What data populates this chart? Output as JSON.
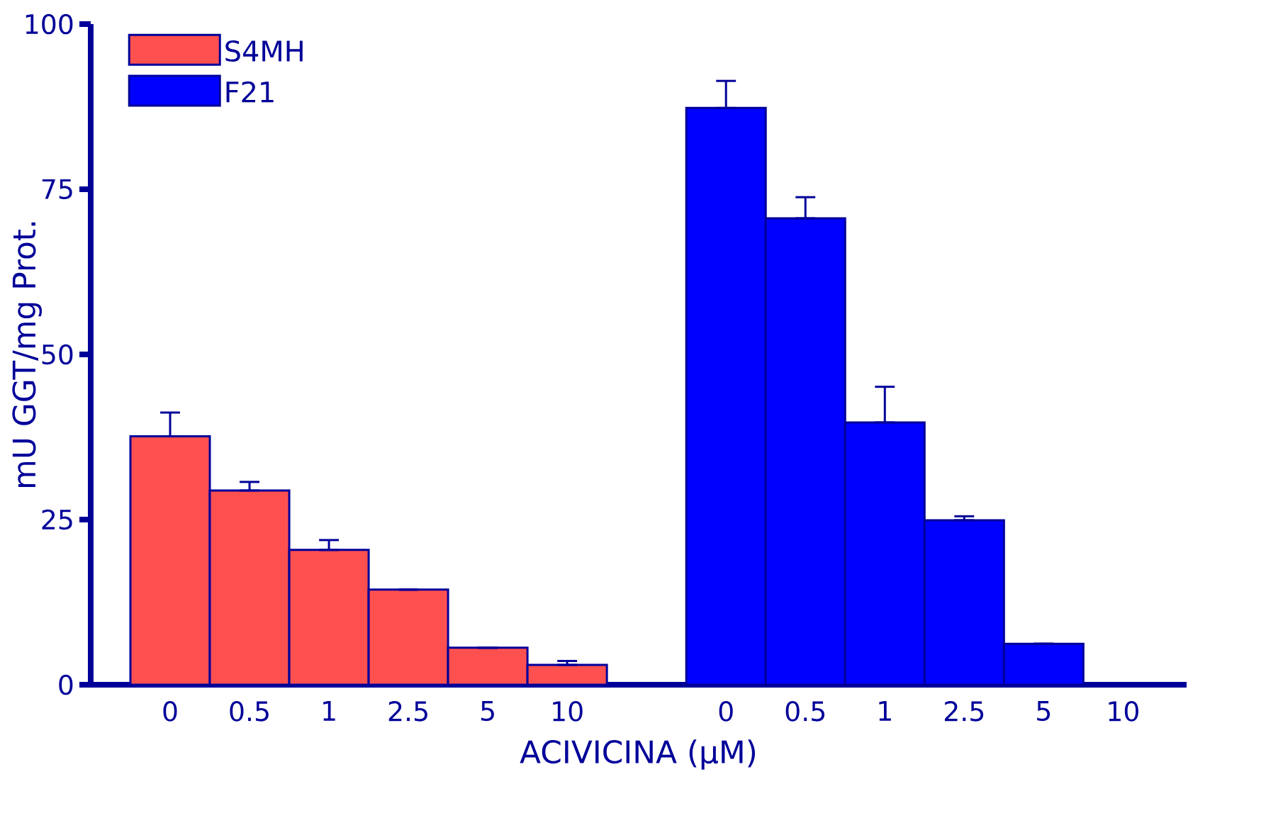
{
  "chart_data": {
    "type": "bar",
    "xlabel": "ACIVICINA (μM)",
    "ylabel": "mU GGT/mg Prot.",
    "categories": [
      "0",
      "0.5",
      "1",
      "2.5",
      "5",
      "10",
      null,
      "0",
      "0.5",
      "1",
      "2.5",
      "5",
      "10"
    ],
    "series": [
      {
        "name": "S4MH",
        "color": "#ff5050",
        "values": [
          37.6,
          29.4,
          20.4,
          14.4,
          5.6,
          3.0,
          null,
          null,
          null,
          null,
          null,
          null,
          null
        ],
        "errors": [
          [
            37.6,
            41.2
          ],
          [
            29.4,
            30.7
          ],
          [
            20.4,
            21.9
          ],
          null,
          null,
          [
            3.0,
            3.6
          ],
          null,
          null,
          null,
          null,
          null,
          null,
          null
        ]
      },
      {
        "name": "F21",
        "color": "#0000ff",
        "values": [
          null,
          null,
          null,
          null,
          null,
          null,
          null,
          87.3,
          70.6,
          39.7,
          24.9,
          6.2,
          null
        ],
        "errors": [
          null,
          null,
          null,
          null,
          null,
          null,
          null,
          [
            87.3,
            91.4
          ],
          [
            70.6,
            73.8
          ],
          [
            39.7,
            45.1
          ],
          [
            24.9,
            25.5
          ],
          null,
          null
        ]
      }
    ],
    "ylim": [
      0,
      100
    ],
    "yticks": [
      0,
      25,
      50,
      75,
      100
    ],
    "legend": "top left"
  }
}
